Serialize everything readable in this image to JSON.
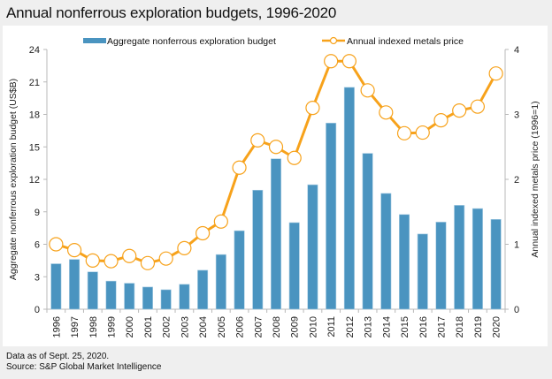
{
  "title": "Annual nonferrous exploration budgets, 1996-2020",
  "footer": {
    "note": "Data as of Sept. 25, 2020.",
    "source": "Source: S&P Global Market Intelligence"
  },
  "colors": {
    "bar": "#4a94c0",
    "line": "#f7a21b",
    "axis": "#b8b8b8",
    "background": "#efefef",
    "panel": "#ffffff"
  },
  "chart_data": {
    "type": "bar+line",
    "title": "Annual nonferrous exploration budgets, 1996-2020",
    "categories": [
      "1996",
      "1997",
      "1998",
      "1999",
      "2000",
      "2001",
      "2002",
      "2003",
      "2004",
      "2005",
      "2006",
      "2007",
      "2008",
      "2009",
      "2010",
      "2011",
      "2012",
      "2013",
      "2014",
      "2015",
      "2016",
      "2017",
      "2018",
      "2019",
      "2020"
    ],
    "series": [
      {
        "name": "Aggregate nonferrous exploration budget",
        "type": "bar",
        "axis": "left",
        "values": [
          4.2,
          4.6,
          3.45,
          2.6,
          2.4,
          2.05,
          1.8,
          2.3,
          3.6,
          5.05,
          7.25,
          11.0,
          13.9,
          8.0,
          11.5,
          17.2,
          20.5,
          14.4,
          10.7,
          8.75,
          6.95,
          8.05,
          9.6,
          9.3,
          8.3
        ]
      },
      {
        "name": "Annual indexed metals price",
        "type": "line",
        "axis": "right",
        "values": [
          1.0,
          0.91,
          0.75,
          0.74,
          0.82,
          0.71,
          0.78,
          0.94,
          1.17,
          1.35,
          2.18,
          2.6,
          2.5,
          2.33,
          3.1,
          3.82,
          3.82,
          3.37,
          3.03,
          2.71,
          2.72,
          2.91,
          3.06,
          3.12,
          3.63
        ]
      }
    ],
    "ylabel": "Aggregate nonferrous exploration budget (US$B)",
    "ylim": [
      0,
      24
    ],
    "yticks": [
      "0",
      "3",
      "6",
      "9",
      "12",
      "15",
      "18",
      "21",
      "24"
    ],
    "y2label": "Annual indexed metals price  (1996=1)",
    "y2lim": [
      0,
      4
    ],
    "y2ticks": [
      "0",
      "1",
      "2",
      "3",
      "4"
    ],
    "xlabel": "",
    "grid": false,
    "legend_position": "top"
  }
}
